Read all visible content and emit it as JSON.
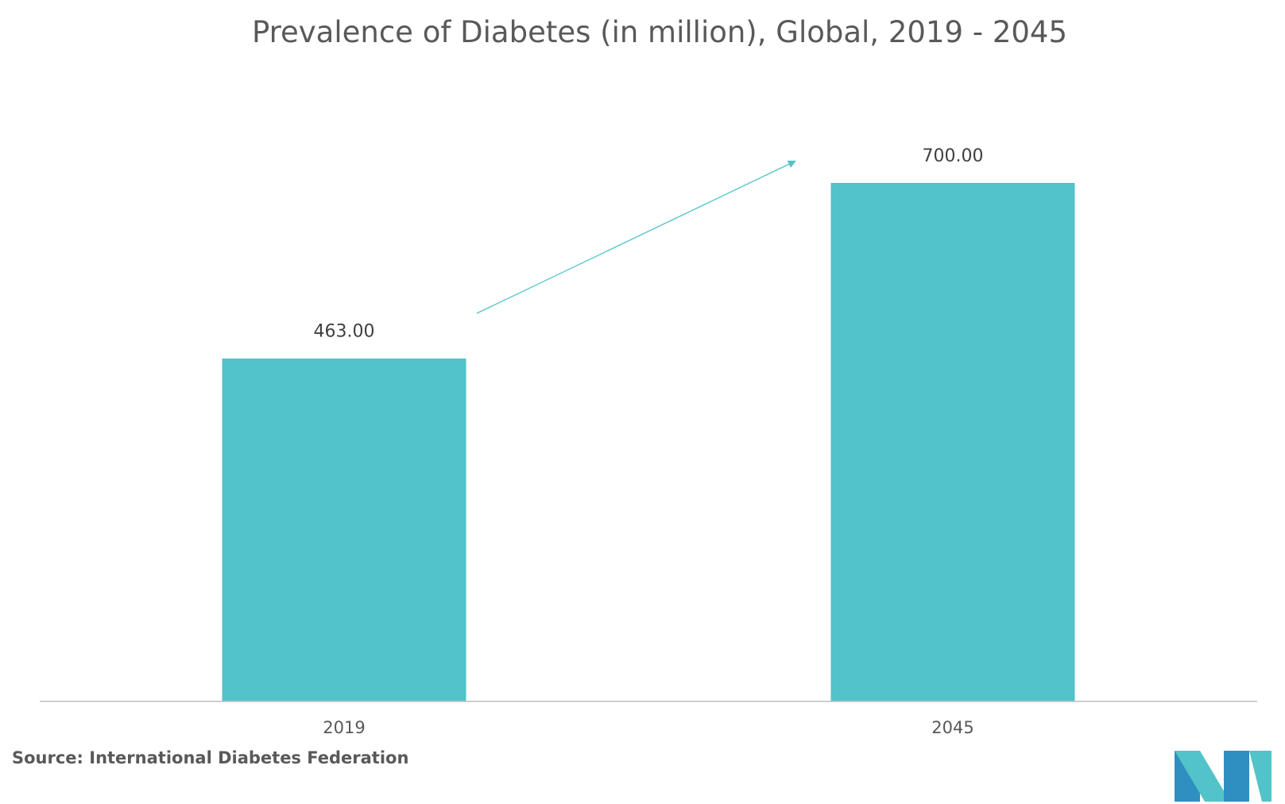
{
  "chart_data": {
    "type": "bar",
    "title": "Prevalence of Diabetes (in million), Global, 2019 - 2045",
    "categories": [
      "2019",
      "2045"
    ],
    "values": [
      463.0,
      700.0
    ],
    "value_labels": [
      "463.00",
      "700.00"
    ],
    "xlabel": "",
    "ylabel": "",
    "ylim": [
      0,
      700
    ],
    "grid": false,
    "legend": "none",
    "annotations": [
      "trend-arrow"
    ]
  },
  "source": "Source: International Diabetes Federation",
  "colors": {
    "bar": "#52C3C8",
    "axis": "#bfbfbf",
    "arrow": "#52C3C8",
    "logo_dark": "#2E8FC0",
    "logo_light": "#52C3C8"
  },
  "logo": {
    "icon": "mordor-logo-icon"
  }
}
